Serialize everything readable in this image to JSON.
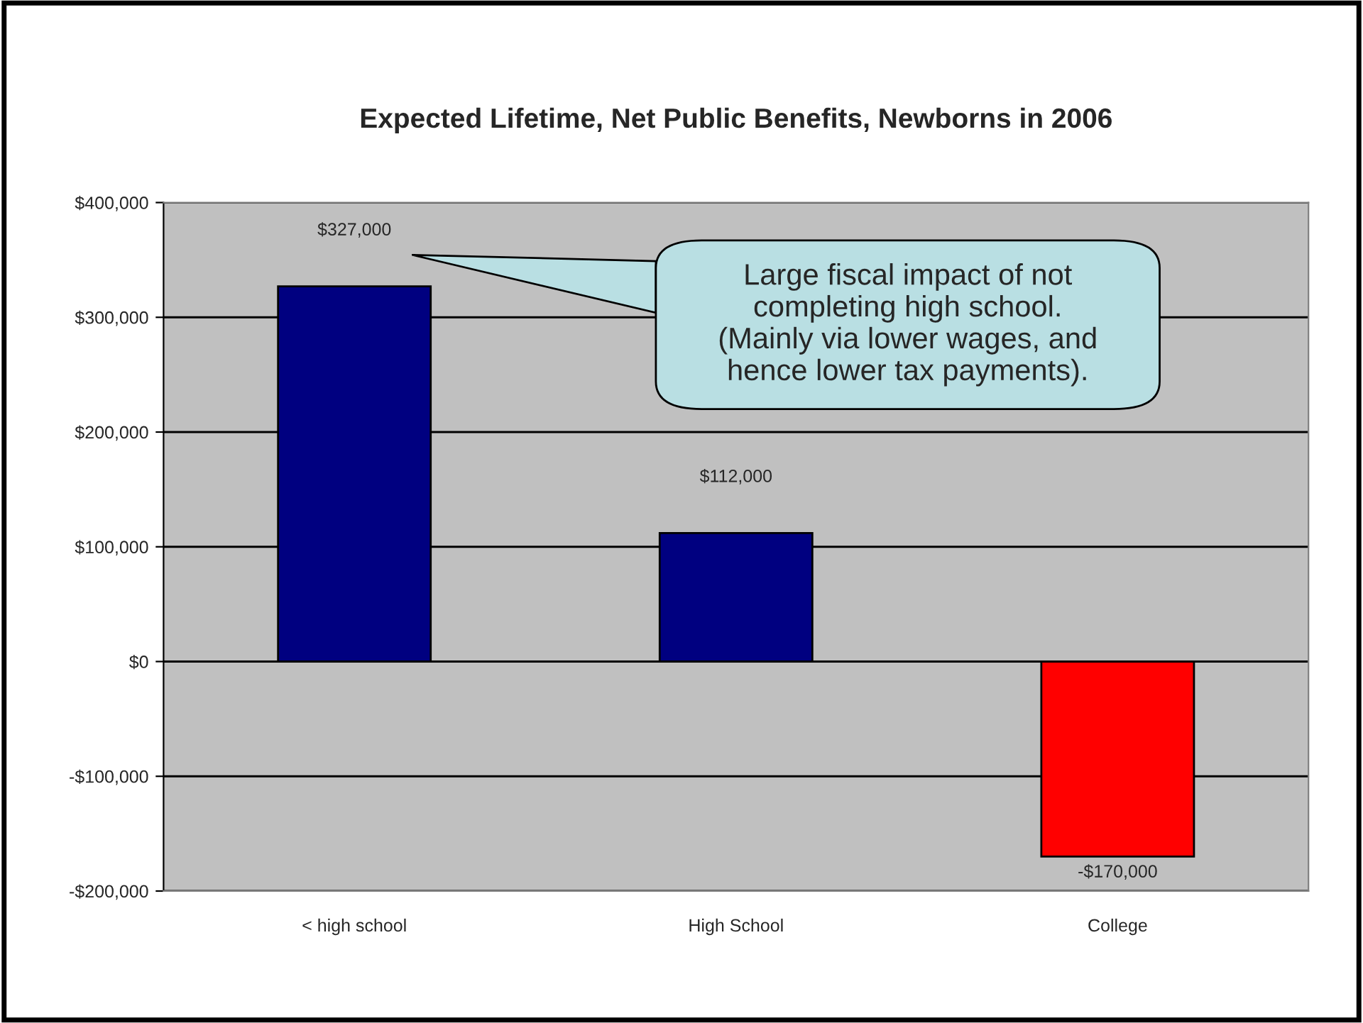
{
  "chart_data": {
    "type": "bar",
    "title": "Expected Lifetime, Net Public Benefits, Newborns in 2006",
    "categories": [
      "< high school",
      "High School",
      "College"
    ],
    "values": [
      327000,
      112000,
      -170000
    ],
    "colors": [
      "#000080",
      "#000080",
      "#ff0000"
    ],
    "value_labels": [
      "$327,000",
      "$112,000",
      "-$170,000"
    ],
    "ylim": [
      -200000,
      400000
    ],
    "yticks": [
      {
        "value": -200000,
        "label": "-$200,000"
      },
      {
        "value": -100000,
        "label": "-$100,000"
      },
      {
        "value": 0,
        "label": "$0"
      },
      {
        "value": 100000,
        "label": "$100,000"
      },
      {
        "value": 200000,
        "label": "$200,000"
      },
      {
        "value": 300000,
        "label": "$300,000"
      },
      {
        "value": 400000,
        "label": "$400,000"
      }
    ],
    "grid": "y",
    "annotations": [
      "Large fiscal impact of not\ncompleting high school.\n(Mainly via lower wages, and\nhence lower tax payments)."
    ]
  }
}
